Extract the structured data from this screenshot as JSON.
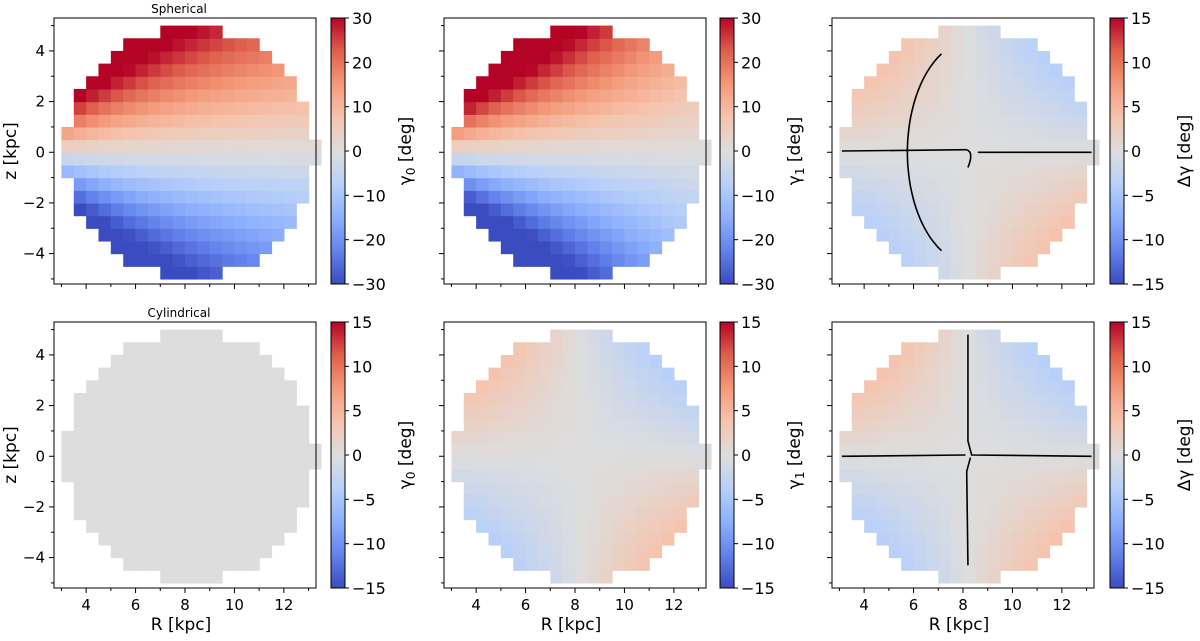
{
  "chart_data": [
    {
      "type": "heatmap",
      "title": "Spherical",
      "xlabel": "",
      "ylabel": "z [kpc]",
      "x_ticks": [
        4,
        6,
        8,
        10,
        12
      ],
      "y_ticks": [
        -4,
        -2,
        0,
        2,
        4
      ],
      "xlim": [
        2.7,
        13.3
      ],
      "ylim": [
        -5.2,
        5.3
      ],
      "cbar": {
        "label": "γ0 [deg]",
        "label_main": "γ",
        "label_sub": "0",
        "label_unit": " [deg]",
        "range": [
          -30,
          30
        ],
        "ticks": [
          30,
          20,
          10,
          0,
          -10,
          -20,
          -30
        ]
      },
      "field": "spherical_gamma",
      "contours": false
    },
    {
      "type": "heatmap",
      "title": "",
      "xlabel": "",
      "ylabel": "",
      "x_ticks": [
        4,
        6,
        8,
        10,
        12
      ],
      "y_ticks": [
        -4,
        -2,
        0,
        2,
        4
      ],
      "xlim": [
        2.7,
        13.3
      ],
      "ylim": [
        -5.2,
        5.3
      ],
      "cbar": {
        "label": "γ1 [deg]",
        "label_main": "γ",
        "label_sub": "1",
        "label_unit": " [deg]",
        "range": [
          -30,
          30
        ],
        "ticks": [
          30,
          20,
          10,
          0,
          -10,
          -20,
          -30
        ]
      },
      "field": "tilted_gamma",
      "contours": false
    },
    {
      "type": "heatmap",
      "title": "",
      "xlabel": "",
      "ylabel": "",
      "x_ticks": [
        4,
        6,
        8,
        10,
        12
      ],
      "y_ticks": [
        -4,
        -2,
        0,
        2,
        4
      ],
      "xlim": [
        2.7,
        13.3
      ],
      "ylim": [
        -5.2,
        5.3
      ],
      "cbar": {
        "label": "Δγ [deg]",
        "label_main": "Δγ",
        "label_sub": "",
        "label_unit": " [deg]",
        "range": [
          -15,
          15
        ],
        "ticks": [
          15,
          10,
          5,
          0,
          -5,
          -10,
          -15
        ]
      },
      "field": "delta_spherical",
      "contours": "spherical"
    },
    {
      "type": "heatmap",
      "title": "Cylindrical",
      "xlabel": "R [kpc]",
      "ylabel": "z [kpc]",
      "x_ticks": [
        4,
        6,
        8,
        10,
        12
      ],
      "y_ticks": [
        -4,
        -2,
        0,
        2,
        4
      ],
      "xlim": [
        2.7,
        13.3
      ],
      "ylim": [
        -5.2,
        5.3
      ],
      "cbar": {
        "label": "γ0 [deg]",
        "label_main": "γ",
        "label_sub": "0",
        "label_unit": " [deg]",
        "range": [
          -15,
          15
        ],
        "ticks": [
          15,
          10,
          5,
          0,
          -5,
          -10,
          -15
        ]
      },
      "field": "zero",
      "contours": false
    },
    {
      "type": "heatmap",
      "title": "",
      "xlabel": "R [kpc]",
      "ylabel": "",
      "x_ticks": [
        4,
        6,
        8,
        10,
        12
      ],
      "y_ticks": [
        -4,
        -2,
        0,
        2,
        4
      ],
      "xlim": [
        2.7,
        13.3
      ],
      "ylim": [
        -5.2,
        5.3
      ],
      "cbar": {
        "label": "γ1 [deg]",
        "label_main": "γ",
        "label_sub": "1",
        "label_unit": " [deg]",
        "range": [
          -15,
          15
        ],
        "ticks": [
          15,
          10,
          5,
          0,
          -5,
          -10,
          -15
        ]
      },
      "field": "cyl_gamma",
      "contours": false
    },
    {
      "type": "heatmap",
      "title": "",
      "xlabel": "R [kpc]",
      "ylabel": "",
      "x_ticks": [
        4,
        6,
        8,
        10,
        12
      ],
      "y_ticks": [
        -4,
        -2,
        0,
        2,
        4
      ],
      "xlim": [
        2.7,
        13.3
      ],
      "ylim": [
        -5.2,
        5.3
      ],
      "cbar": {
        "label": "Δγ [deg]",
        "label_main": "Δγ",
        "label_sub": "",
        "label_unit": " [deg]",
        "range": [
          -15,
          15
        ],
        "ticks": [
          15,
          10,
          5,
          0,
          -5,
          -10,
          -15
        ]
      },
      "field": "cyl_gamma",
      "contours": "cylindrical"
    }
  ],
  "colors": {
    "colormap": "coolwarm",
    "coolwarm_min": "#3b4cc0",
    "coolwarm_mid": "#dddddd",
    "coolwarm_max": "#b40426",
    "contour": "#000000"
  }
}
